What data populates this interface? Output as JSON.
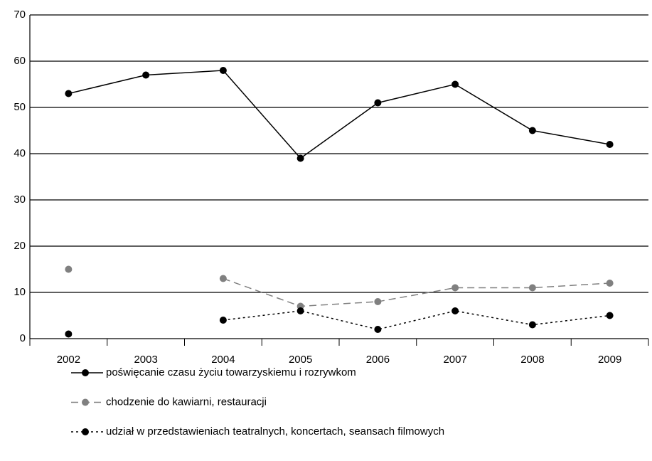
{
  "chart_data": {
    "type": "line",
    "categories": [
      "2002",
      "2003",
      "2004",
      "2005",
      "2006",
      "2007",
      "2008",
      "2009"
    ],
    "series": [
      {
        "name": "poświęcanie czasu życiu towarzyskiemu i rozrywkom",
        "color": "#000000",
        "dash": "solid",
        "values": [
          53,
          57,
          58,
          39,
          51,
          55,
          45,
          42
        ]
      },
      {
        "name": "chodzenie do kawiarni, restauracji",
        "color": "#808080",
        "dash": "dashed",
        "values": [
          15,
          null,
          13,
          7,
          8,
          11,
          11,
          12
        ]
      },
      {
        "name": "udział w przedstawieniach teatralnych, koncertach, seansach filmowych",
        "color": "#000000",
        "dash": "dotted",
        "values": [
          1,
          null,
          4,
          6,
          2,
          6,
          3,
          5
        ]
      }
    ],
    "ylim": [
      0,
      70
    ],
    "yticks": [
      0,
      10,
      20,
      30,
      40,
      50,
      60,
      70
    ],
    "grid": true,
    "legend": "bottom"
  }
}
